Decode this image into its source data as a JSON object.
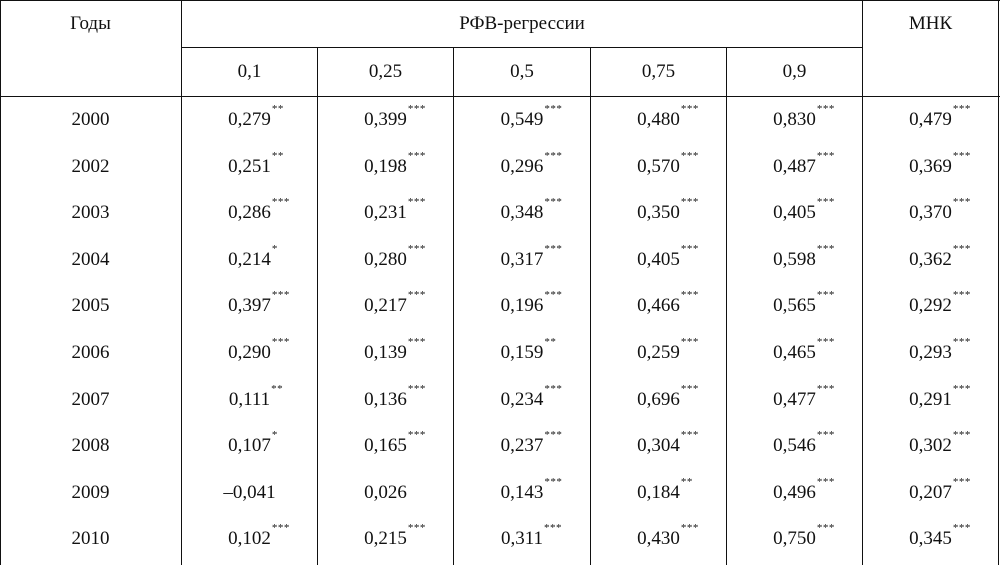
{
  "header": {
    "years_label": "Годы",
    "regression_label": "РФВ-регрессии",
    "ols_label": "МНК",
    "quantiles": [
      "0,1",
      "0,25",
      "0,5",
      "0,75",
      "0,9"
    ]
  },
  "rows": [
    {
      "year": "2000",
      "cells": [
        {
          "v": "0,279",
          "s": "**"
        },
        {
          "v": "0,399",
          "s": "***"
        },
        {
          "v": "0,549",
          "s": "***"
        },
        {
          "v": "0,480",
          "s": "***"
        },
        {
          "v": "0,830",
          "s": "***"
        },
        {
          "v": "0,479",
          "s": "***"
        }
      ]
    },
    {
      "year": "2002",
      "cells": [
        {
          "v": "0,251",
          "s": "**"
        },
        {
          "v": "0,198",
          "s": "***"
        },
        {
          "v": "0,296",
          "s": "***"
        },
        {
          "v": "0,570",
          "s": "***"
        },
        {
          "v": "0,487",
          "s": "***"
        },
        {
          "v": "0,369",
          "s": "***"
        }
      ]
    },
    {
      "year": "2003",
      "cells": [
        {
          "v": "0,286",
          "s": "***"
        },
        {
          "v": "0,231",
          "s": "***"
        },
        {
          "v": "0,348",
          "s": "***"
        },
        {
          "v": "0,350",
          "s": "***"
        },
        {
          "v": "0,405",
          "s": "***"
        },
        {
          "v": "0,370",
          "s": "***"
        }
      ]
    },
    {
      "year": "2004",
      "cells": [
        {
          "v": "0,214",
          "s": "*"
        },
        {
          "v": "0,280",
          "s": "***"
        },
        {
          "v": "0,317",
          "s": "***"
        },
        {
          "v": "0,405",
          "s": "***"
        },
        {
          "v": "0,598",
          "s": "***"
        },
        {
          "v": "0,362",
          "s": "***"
        }
      ]
    },
    {
      "year": "2005",
      "cells": [
        {
          "v": "0,397",
          "s": "***"
        },
        {
          "v": "0,217",
          "s": "***"
        },
        {
          "v": "0,196",
          "s": "***"
        },
        {
          "v": "0,466",
          "s": "***"
        },
        {
          "v": "0,565",
          "s": "***"
        },
        {
          "v": "0,292",
          "s": "***"
        }
      ]
    },
    {
      "year": "2006",
      "cells": [
        {
          "v": "0,290",
          "s": "***"
        },
        {
          "v": "0,139",
          "s": "***"
        },
        {
          "v": "0,159",
          "s": "**"
        },
        {
          "v": "0,259",
          "s": "***"
        },
        {
          "v": "0,465",
          "s": "***"
        },
        {
          "v": "0,293",
          "s": "***"
        }
      ]
    },
    {
      "year": "2007",
      "cells": [
        {
          "v": "0,111",
          "s": "**"
        },
        {
          "v": "0,136",
          "s": "***"
        },
        {
          "v": "0,234",
          "s": "***"
        },
        {
          "v": "0,696",
          "s": "***"
        },
        {
          "v": "0,477",
          "s": "***"
        },
        {
          "v": "0,291",
          "s": "***"
        }
      ]
    },
    {
      "year": "2008",
      "cells": [
        {
          "v": "0,107",
          "s": "*"
        },
        {
          "v": "0,165",
          "s": "***"
        },
        {
          "v": "0,237",
          "s": "***"
        },
        {
          "v": "0,304",
          "s": "***"
        },
        {
          "v": "0,546",
          "s": "***"
        },
        {
          "v": "0,302",
          "s": "***"
        }
      ]
    },
    {
      "year": "2009",
      "cells": [
        {
          "v": "–0,041",
          "s": ""
        },
        {
          "v": "0,026",
          "s": ""
        },
        {
          "v": "0,143",
          "s": "***"
        },
        {
          "v": "0,184",
          "s": "**"
        },
        {
          "v": "0,496",
          "s": "***"
        },
        {
          "v": "0,207",
          "s": "***"
        }
      ]
    },
    {
      "year": "2010",
      "cells": [
        {
          "v": "0,102",
          "s": "***"
        },
        {
          "v": "0,215",
          "s": "***"
        },
        {
          "v": "0,311",
          "s": "***"
        },
        {
          "v": "0,430",
          "s": "***"
        },
        {
          "v": "0,750",
          "s": "***"
        },
        {
          "v": "0,345",
          "s": "***"
        }
      ]
    }
  ]
}
